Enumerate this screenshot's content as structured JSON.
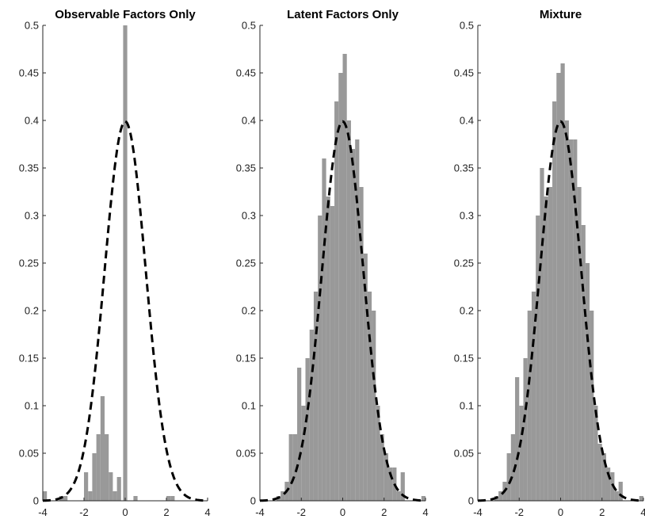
{
  "chart_data": [
    {
      "type": "bar",
      "title": "Observable Factors Only",
      "xlabel": "",
      "ylabel": "",
      "xlim": [
        -4,
        4
      ],
      "ylim": [
        0,
        0.5
      ],
      "xticks": [
        -4,
        -2,
        0,
        2,
        4
      ],
      "yticks": [
        0,
        0.05,
        0.1,
        0.15,
        0.2,
        0.25,
        0.3,
        0.35,
        0.4,
        0.45,
        0.5
      ],
      "series": [
        {
          "kind": "histogram",
          "color": "#999999",
          "bin_width": 0.2,
          "bin_centers": [
            -3.9,
            -3.1,
            -2.9,
            -1.9,
            -1.7,
            -1.5,
            -1.3,
            -1.1,
            -0.9,
            -0.7,
            -0.5,
            -0.3,
            0.0,
            0.5,
            2.1,
            2.3
          ],
          "values": [
            0.01,
            0.005,
            0.005,
            0.03,
            0.01,
            0.05,
            0.07,
            0.11,
            0.07,
            0.03,
            0.01,
            0.025,
            0.5,
            0.005,
            0.005,
            0.005
          ]
        },
        {
          "kind": "line",
          "style": "dashed",
          "color": "#000000",
          "function": "standard_normal_pdf"
        }
      ]
    },
    {
      "type": "bar",
      "title": "Latent Factors Only",
      "xlabel": "",
      "ylabel": "",
      "xlim": [
        -4,
        4
      ],
      "ylim": [
        0,
        0.5
      ],
      "xticks": [
        -4,
        -2,
        0,
        2,
        4
      ],
      "yticks": [
        0,
        0.05,
        0.1,
        0.15,
        0.2,
        0.25,
        0.3,
        0.35,
        0.4,
        0.45,
        0.5
      ],
      "series": [
        {
          "kind": "histogram",
          "color": "#999999",
          "bin_width": 0.2,
          "bin_centers": [
            -3.9,
            -3.7,
            -3.5,
            -3.3,
            -3.1,
            -2.9,
            -2.7,
            -2.5,
            -2.3,
            -2.1,
            -1.9,
            -1.7,
            -1.5,
            -1.3,
            -1.1,
            -0.9,
            -0.7,
            -0.5,
            -0.3,
            -0.1,
            0.1,
            0.3,
            0.5,
            0.7,
            0.9,
            1.1,
            1.3,
            1.5,
            1.7,
            1.9,
            2.1,
            2.3,
            2.5,
            2.7,
            2.9,
            3.1,
            3.3,
            3.5,
            3.7,
            3.9
          ],
          "values": [
            0.0,
            0.0,
            0.0,
            0.0,
            0.005,
            0.01,
            0.02,
            0.07,
            0.07,
            0.14,
            0.1,
            0.15,
            0.18,
            0.22,
            0.3,
            0.36,
            0.32,
            0.31,
            0.42,
            0.45,
            0.47,
            0.4,
            0.37,
            0.38,
            0.33,
            0.26,
            0.22,
            0.2,
            0.1,
            0.07,
            0.05,
            0.035,
            0.035,
            0.01,
            0.03,
            0.0,
            0.0,
            0.0,
            0.0,
            0.005
          ]
        },
        {
          "kind": "line",
          "style": "dashed",
          "color": "#000000",
          "function": "standard_normal_pdf"
        }
      ]
    },
    {
      "type": "bar",
      "title": "Mixture",
      "xlabel": "",
      "ylabel": "",
      "xlim": [
        -4,
        4
      ],
      "ylim": [
        0,
        0.5
      ],
      "xticks": [
        -4,
        -2,
        0,
        2,
        4
      ],
      "yticks": [
        0,
        0.05,
        0.1,
        0.15,
        0.2,
        0.25,
        0.3,
        0.35,
        0.4,
        0.45,
        0.5
      ],
      "series": [
        {
          "kind": "histogram",
          "color": "#999999",
          "bin_width": 0.2,
          "bin_centers": [
            -3.9,
            -3.7,
            -3.5,
            -3.3,
            -3.1,
            -2.9,
            -2.7,
            -2.5,
            -2.3,
            -2.1,
            -1.9,
            -1.7,
            -1.5,
            -1.3,
            -1.1,
            -0.9,
            -0.7,
            -0.5,
            -0.3,
            -0.1,
            0.1,
            0.3,
            0.5,
            0.7,
            0.9,
            1.1,
            1.3,
            1.5,
            1.7,
            1.9,
            2.1,
            2.3,
            2.5,
            2.7,
            2.9,
            3.1,
            3.3,
            3.5,
            3.7,
            3.9
          ],
          "values": [
            0.0,
            0.0,
            0.0,
            0.0,
            0.005,
            0.01,
            0.02,
            0.05,
            0.07,
            0.13,
            0.1,
            0.15,
            0.2,
            0.22,
            0.3,
            0.35,
            0.32,
            0.33,
            0.42,
            0.45,
            0.46,
            0.4,
            0.38,
            0.38,
            0.33,
            0.29,
            0.25,
            0.2,
            0.1,
            0.06,
            0.05,
            0.035,
            0.03,
            0.01,
            0.02,
            0.0,
            0.0,
            0.0,
            0.0,
            0.005
          ]
        },
        {
          "kind": "line",
          "style": "dashed",
          "color": "#000000",
          "function": "standard_normal_pdf"
        }
      ]
    }
  ]
}
